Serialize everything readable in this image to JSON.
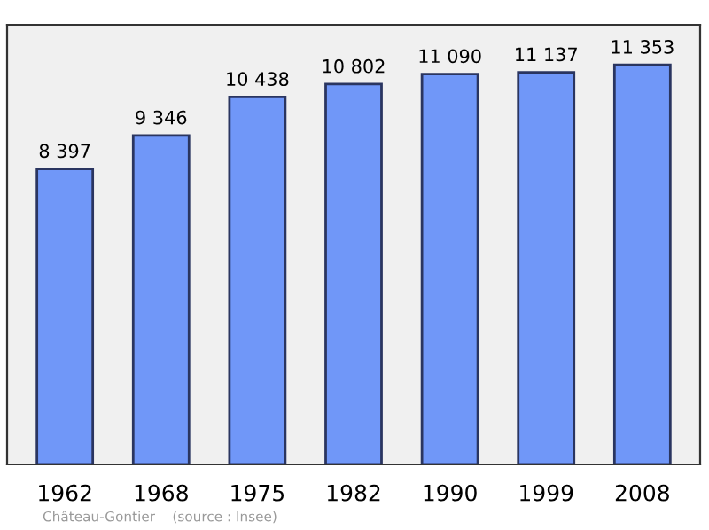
{
  "chart_data": {
    "type": "bar",
    "categories": [
      "1962",
      "1968",
      "1975",
      "1982",
      "1990",
      "1999",
      "2008"
    ],
    "values": [
      8397,
      9346,
      10438,
      10802,
      11090,
      11137,
      11353
    ],
    "value_labels": [
      "8 397",
      "9 346",
      "10 438",
      "10 802",
      "11 090",
      "11 137",
      "11 353"
    ],
    "color": "#7097f8",
    "grid": false,
    "legend": false,
    "annotations": [
      "Château-Gontier    (source : Insee)"
    ]
  }
}
